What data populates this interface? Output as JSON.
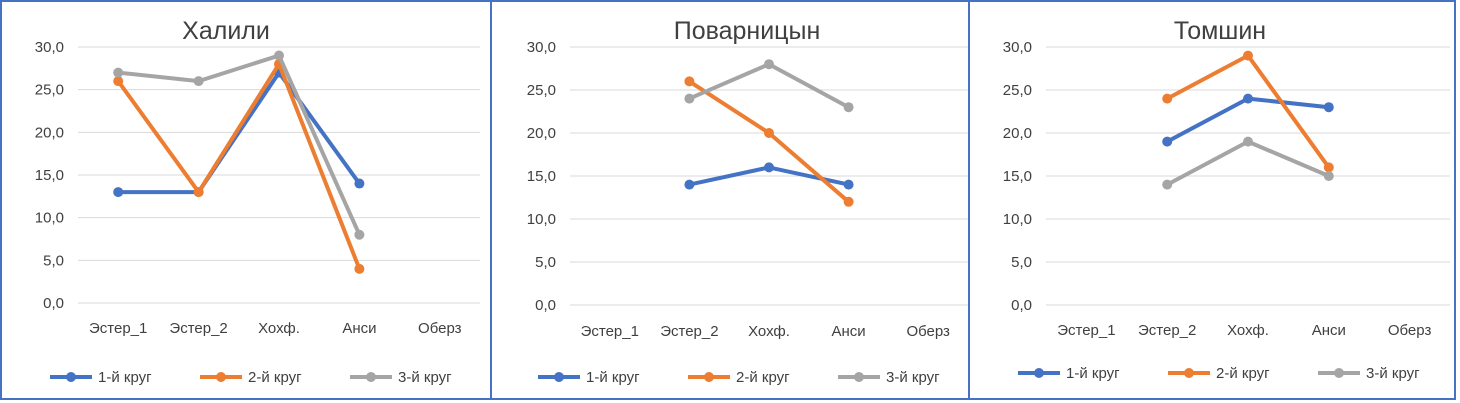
{
  "chart_data": [
    {
      "type": "line",
      "title": "Халили",
      "categories": [
        "Эстер_1",
        "Эстер_2",
        "Хохф.",
        "Анси",
        "Оберз"
      ],
      "ylim": [
        0,
        30
      ],
      "yticks": [
        "0,0",
        "5,0",
        "10,0",
        "15,0",
        "20,0",
        "25,0",
        "30,0"
      ],
      "grid": true,
      "legend_position": "bottom",
      "series": [
        {
          "name": "1-й круг",
          "color": "#4472c4",
          "values": [
            13,
            13,
            27,
            14,
            null
          ]
        },
        {
          "name": "2-й круг",
          "color": "#ed7d31",
          "values": [
            26,
            13,
            28,
            4,
            null
          ]
        },
        {
          "name": "3-й круг",
          "color": "#a5a5a5",
          "values": [
            27,
            26,
            29,
            8,
            null
          ]
        }
      ]
    },
    {
      "type": "line",
      "title": "Поварницын",
      "categories": [
        "Эстер_1",
        "Эстер_2",
        "Хохф.",
        "Анси",
        "Оберз"
      ],
      "ylim": [
        0,
        30
      ],
      "yticks": [
        "0,0",
        "5,0",
        "10,0",
        "15,0",
        "20,0",
        "25,0",
        "30,0"
      ],
      "grid": true,
      "legend_position": "bottom",
      "series": [
        {
          "name": "1-й круг",
          "color": "#4472c4",
          "values": [
            null,
            14,
            16,
            14,
            null
          ]
        },
        {
          "name": "2-й круг",
          "color": "#ed7d31",
          "values": [
            null,
            26,
            20,
            12,
            null
          ]
        },
        {
          "name": "3-й круг",
          "color": "#a5a5a5",
          "values": [
            null,
            24,
            28,
            23,
            null
          ]
        }
      ]
    },
    {
      "type": "line",
      "title": "Томшин",
      "categories": [
        "Эстер_1",
        "Эстер_2",
        "Хохф.",
        "Анси",
        "Оберз"
      ],
      "ylim": [
        0,
        30
      ],
      "yticks": [
        "0,0",
        "5,0",
        "10,0",
        "15,0",
        "20,0",
        "25,0",
        "30,0"
      ],
      "grid": true,
      "legend_position": "bottom",
      "series": [
        {
          "name": "1-й круг",
          "color": "#4472c4",
          "values": [
            null,
            19,
            24,
            23,
            null
          ]
        },
        {
          "name": "2-й круг",
          "color": "#ed7d31",
          "values": [
            null,
            24,
            29,
            16,
            null
          ]
        },
        {
          "name": "3-й круг",
          "color": "#a5a5a5",
          "values": [
            null,
            14,
            19,
            15,
            null
          ]
        }
      ]
    }
  ]
}
